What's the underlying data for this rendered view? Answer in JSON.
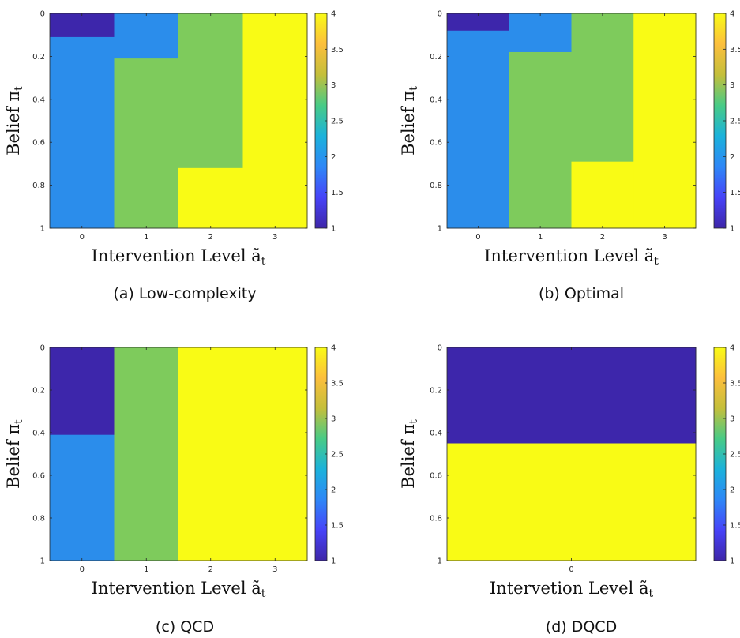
{
  "colorbar": {
    "range": [
      1,
      4
    ],
    "ticks": [
      "1",
      "1.5",
      "2",
      "2.5",
      "3",
      "3.5",
      "4"
    ],
    "colormap": [
      "#3e26a8",
      "#4743f8",
      "#2e87f7",
      "#1bb2db",
      "#48cb86",
      "#c4bf3b",
      "#fcbf3d",
      "#f9fb15"
    ]
  },
  "level_colors": {
    "1": "#3d26ab",
    "2": "#2b8deb",
    "3": "#7ecb5c",
    "4": "#f9fb15"
  },
  "chart_data": [
    {
      "type": "heatmap",
      "caption": "(a) Low-complexity",
      "xlabel": "Intervention Level ã",
      "xlabel_sub": "t",
      "ylabel": "Belief π",
      "ylabel_sub": "t",
      "x_categories": [
        "0",
        "1",
        "2",
        "3"
      ],
      "y_ticks": [
        "0",
        "0.2",
        "0.4",
        "0.6",
        "0.8",
        "1"
      ],
      "ylim": [
        0,
        1
      ],
      "columns": [
        [
          {
            "from": 0,
            "to": 0.11,
            "value": 1
          },
          {
            "from": 0.11,
            "to": 1,
            "value": 2
          }
        ],
        [
          {
            "from": 0,
            "to": 0.21,
            "value": 2
          },
          {
            "from": 0.21,
            "to": 1,
            "value": 3
          }
        ],
        [
          {
            "from": 0,
            "to": 0.72,
            "value": 3
          },
          {
            "from": 0.72,
            "to": 1,
            "value": 4
          }
        ],
        [
          {
            "from": 0,
            "to": 1,
            "value": 4
          }
        ]
      ]
    },
    {
      "type": "heatmap",
      "caption": "(b) Optimal",
      "xlabel": "Intervention Level ã",
      "xlabel_sub": "t",
      "ylabel": "Belief π",
      "ylabel_sub": "t",
      "x_categories": [
        "0",
        "1",
        "2",
        "3"
      ],
      "y_ticks": [
        "0",
        "0.2",
        "0.4",
        "0.6",
        "0.8",
        "1"
      ],
      "ylim": [
        0,
        1
      ],
      "columns": [
        [
          {
            "from": 0,
            "to": 0.08,
            "value": 1
          },
          {
            "from": 0.08,
            "to": 1,
            "value": 2
          }
        ],
        [
          {
            "from": 0,
            "to": 0.18,
            "value": 2
          },
          {
            "from": 0.18,
            "to": 1,
            "value": 3
          }
        ],
        [
          {
            "from": 0,
            "to": 0.69,
            "value": 3
          },
          {
            "from": 0.69,
            "to": 1,
            "value": 4
          }
        ],
        [
          {
            "from": 0,
            "to": 1,
            "value": 4
          }
        ]
      ]
    },
    {
      "type": "heatmap",
      "caption": "(c) QCD",
      "xlabel": "Intervention Level ã",
      "xlabel_sub": "t",
      "ylabel": "Belief π",
      "ylabel_sub": "t",
      "x_categories": [
        "0",
        "1",
        "2",
        "3"
      ],
      "y_ticks": [
        "0",
        "0.2",
        "0.4",
        "0.6",
        "0.8",
        "1"
      ],
      "ylim": [
        0,
        1
      ],
      "columns": [
        [
          {
            "from": 0,
            "to": 0.41,
            "value": 1
          },
          {
            "from": 0.41,
            "to": 1,
            "value": 2
          }
        ],
        [
          {
            "from": 0,
            "to": 1,
            "value": 3
          }
        ],
        [
          {
            "from": 0,
            "to": 1,
            "value": 4
          }
        ],
        [
          {
            "from": 0,
            "to": 1,
            "value": 4
          }
        ]
      ]
    },
    {
      "type": "heatmap",
      "caption": "(d) DQCD",
      "xlabel": "Intervetion Level ã",
      "xlabel_sub": "t",
      "ylabel": "Belief π",
      "ylabel_sub": "t",
      "x_categories": [
        "0"
      ],
      "y_ticks": [
        "0",
        "0.2",
        "0.4",
        "0.6",
        "0.8",
        "1"
      ],
      "ylim": [
        0,
        1
      ],
      "columns": [
        [
          {
            "from": 0,
            "to": 0.45,
            "value": 1
          },
          {
            "from": 0.45,
            "to": 1,
            "value": 4
          }
        ]
      ]
    }
  ]
}
